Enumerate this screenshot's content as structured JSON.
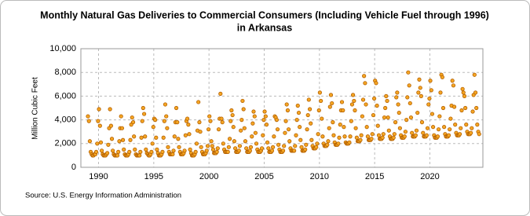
{
  "chart_data": {
    "type": "scatter",
    "title": [
      "Monthly Natural Gas Deliveries to Commercial Consumers (Including Vehicle Fuel through 1996)",
      "in Arkansas"
    ],
    "ylabel": "Million Cubic Feet",
    "source": "Source: U.S. Energy Information Administration",
    "xlim": [
      1988.4,
      2024.8
    ],
    "xticks": [
      1990,
      1995,
      2000,
      2005,
      2010,
      2015,
      2020
    ],
    "ylim": [
      0,
      10000
    ],
    "yticks": [
      0,
      {
        "value": 2000,
        "label": "2,000"
      },
      {
        "value": 4000,
        "label": "4,000"
      },
      {
        "value": 6000,
        "label": "6,000"
      },
      {
        "value": 8000,
        "label": "8,000"
      },
      {
        "value": 10000,
        "label": "10,000"
      }
    ],
    "grid": true,
    "x": [
      1989.04,
      1989.13,
      1989.21,
      1989.29,
      1989.38,
      1989.46,
      1989.54,
      1989.63,
      1989.71,
      1989.79,
      1989.88,
      1989.96,
      1990.04,
      1990.13,
      1990.21,
      1990.29,
      1990.38,
      1990.46,
      1990.54,
      1990.63,
      1990.71,
      1990.79,
      1990.88,
      1990.96,
      1991.04,
      1991.13,
      1991.21,
      1991.29,
      1991.38,
      1991.46,
      1991.54,
      1991.63,
      1991.71,
      1991.79,
      1991.88,
      1991.96,
      1992.04,
      1992.13,
      1992.21,
      1992.29,
      1992.38,
      1992.46,
      1992.54,
      1992.63,
      1992.71,
      1992.79,
      1992.88,
      1992.96,
      1993.04,
      1993.13,
      1993.21,
      1993.29,
      1993.38,
      1993.46,
      1993.54,
      1993.63,
      1993.71,
      1993.79,
      1993.88,
      1993.96,
      1994.04,
      1994.13,
      1994.21,
      1994.29,
      1994.38,
      1994.46,
      1994.54,
      1994.63,
      1994.71,
      1994.79,
      1994.88,
      1994.96,
      1995.04,
      1995.13,
      1995.21,
      1995.29,
      1995.38,
      1995.46,
      1995.54,
      1995.63,
      1995.71,
      1995.79,
      1995.88,
      1995.96,
      1996.04,
      1996.13,
      1996.21,
      1996.29,
      1996.38,
      1996.46,
      1996.54,
      1996.63,
      1996.71,
      1996.79,
      1996.88,
      1996.96,
      1997.04,
      1997.13,
      1997.21,
      1997.29,
      1997.38,
      1997.46,
      1997.54,
      1997.63,
      1997.71,
      1997.79,
      1997.88,
      1997.96,
      1998.04,
      1998.13,
      1998.21,
      1998.29,
      1998.38,
      1998.46,
      1998.54,
      1998.63,
      1998.71,
      1998.79,
      1998.88,
      1998.96,
      1999.04,
      1999.13,
      1999.21,
      1999.29,
      1999.38,
      1999.46,
      1999.54,
      1999.63,
      1999.71,
      1999.79,
      1999.88,
      1999.96,
      2000.04,
      2000.13,
      2000.21,
      2000.29,
      2000.38,
      2000.46,
      2000.54,
      2000.63,
      2000.71,
      2000.79,
      2000.88,
      2000.96,
      2001.04,
      2001.13,
      2001.21,
      2001.29,
      2001.38,
      2001.46,
      2001.54,
      2001.63,
      2001.71,
      2001.79,
      2001.88,
      2001.96,
      2002.04,
      2002.13,
      2002.21,
      2002.29,
      2002.38,
      2002.46,
      2002.54,
      2002.63,
      2002.71,
      2002.79,
      2002.88,
      2002.96,
      2003.04,
      2003.13,
      2003.21,
      2003.29,
      2003.38,
      2003.46,
      2003.54,
      2003.63,
      2003.71,
      2003.79,
      2003.88,
      2003.96,
      2004.04,
      2004.13,
      2004.21,
      2004.29,
      2004.38,
      2004.46,
      2004.54,
      2004.63,
      2004.71,
      2004.79,
      2004.88,
      2004.96,
      2005.04,
      2005.13,
      2005.21,
      2005.29,
      2005.38,
      2005.46,
      2005.54,
      2005.63,
      2005.71,
      2005.79,
      2005.88,
      2005.96,
      2006.04,
      2006.13,
      2006.21,
      2006.29,
      2006.38,
      2006.46,
      2006.54,
      2006.63,
      2006.71,
      2006.79,
      2006.88,
      2006.96,
      2007.04,
      2007.13,
      2007.21,
      2007.29,
      2007.38,
      2007.46,
      2007.54,
      2007.63,
      2007.71,
      2007.79,
      2007.88,
      2007.96,
      2008.04,
      2008.13,
      2008.21,
      2008.29,
      2008.38,
      2008.46,
      2008.54,
      2008.63,
      2008.71,
      2008.79,
      2008.88,
      2008.96,
      2009.04,
      2009.13,
      2009.21,
      2009.29,
      2009.38,
      2009.46,
      2009.54,
      2009.63,
      2009.71,
      2009.79,
      2009.88,
      2009.96,
      2010.04,
      2010.13,
      2010.21,
      2010.29,
      2010.38,
      2010.46,
      2010.54,
      2010.63,
      2010.71,
      2010.79,
      2010.88,
      2010.96,
      2011.04,
      2011.13,
      2011.21,
      2011.29,
      2011.38,
      2011.46,
      2011.54,
      2011.63,
      2011.71,
      2011.79,
      2011.88,
      2011.96,
      2012.04,
      2012.13,
      2012.21,
      2012.29,
      2012.38,
      2012.46,
      2012.54,
      2012.63,
      2012.71,
      2012.79,
      2012.88,
      2012.96,
      2013.04,
      2013.13,
      2013.21,
      2013.29,
      2013.38,
      2013.46,
      2013.54,
      2013.63,
      2013.71,
      2013.79,
      2013.88,
      2013.96,
      2014.04,
      2014.13,
      2014.21,
      2014.29,
      2014.38,
      2014.46,
      2014.54,
      2014.63,
      2014.71,
      2014.79,
      2014.88,
      2014.96,
      2015.04,
      2015.13,
      2015.21,
      2015.29,
      2015.38,
      2015.46,
      2015.54,
      2015.63,
      2015.71,
      2015.79,
      2015.88,
      2015.96,
      2016.04,
      2016.13,
      2016.21,
      2016.29,
      2016.38,
      2016.46,
      2016.54,
      2016.63,
      2016.71,
      2016.79,
      2016.88,
      2016.96,
      2017.04,
      2017.13,
      2017.21,
      2017.29,
      2017.38,
      2017.46,
      2017.54,
      2017.63,
      2017.71,
      2017.79,
      2017.88,
      2017.96,
      2018.04,
      2018.13,
      2018.21,
      2018.29,
      2018.38,
      2018.46,
      2018.54,
      2018.63,
      2018.71,
      2018.79,
      2018.88,
      2018.96,
      2019.04,
      2019.13,
      2019.21,
      2019.29,
      2019.38,
      2019.46,
      2019.54,
      2019.63,
      2019.71,
      2019.79,
      2019.88,
      2019.96,
      2020.04,
      2020.13,
      2020.21,
      2020.29,
      2020.38,
      2020.46,
      2020.54,
      2020.63,
      2020.71,
      2020.79,
      2020.88,
      2020.96,
      2021.04,
      2021.13,
      2021.21,
      2021.29,
      2021.38,
      2021.46,
      2021.54,
      2021.63,
      2021.71,
      2021.79,
      2021.88,
      2021.96,
      2022.04,
      2022.13,
      2022.21,
      2022.29,
      2022.38,
      2022.46,
      2022.54,
      2022.63,
      2022.71,
      2022.79,
      2022.88,
      2022.96,
      2023.04,
      2023.13,
      2023.21,
      2023.29,
      2023.38,
      2023.46,
      2023.54,
      2023.63,
      2023.71,
      2023.79,
      2023.88,
      2023.96,
      2024.04,
      2024.13,
      2024.21,
      2024.29,
      2024.38,
      2024.46
    ],
    "series": [
      {
        "color": "#f5a623",
        "values": [
          4300,
          3900,
          2200,
          1300,
          1100,
          1000,
          1000,
          1100,
          1100,
          1300,
          2000,
          3900,
          4900,
          3500,
          2100,
          1400,
          1100,
          1000,
          1000,
          1000,
          1100,
          1200,
          1900,
          3300,
          4900,
          3500,
          2400,
          1400,
          1100,
          1000,
          1000,
          1000,
          1000,
          1300,
          2200,
          3300,
          4300,
          3300,
          2300,
          1500,
          1100,
          1000,
          1000,
          1000,
          1100,
          1300,
          2300,
          3600,
          4200,
          3800,
          2600,
          1500,
          1100,
          1000,
          1000,
          1000,
          1000,
          1300,
          2500,
          3900,
          5000,
          4500,
          2600,
          1500,
          1200,
          1100,
          1000,
          1000,
          1100,
          1300,
          2000,
          3400,
          4100,
          4000,
          2500,
          1500,
          1200,
          1000,
          1000,
          1000,
          1100,
          1300,
          2500,
          3900,
          5300,
          4300,
          3300,
          1700,
          1300,
          1100,
          1100,
          1100,
          1100,
          1400,
          2600,
          3800,
          5000,
          3800,
          2400,
          1700,
          1300,
          1100,
          1100,
          1100,
          1200,
          1400,
          2700,
          3900,
          4100,
          3600,
          2800,
          1500,
          1200,
          1000,
          1000,
          1000,
          1100,
          1300,
          2000,
          3100,
          5500,
          3800,
          3000,
          1700,
          1300,
          1100,
          1100,
          1100,
          1200,
          1400,
          1800,
          3200,
          4300,
          3900,
          2200,
          1800,
          1500,
          1200,
          1200,
          1200,
          1300,
          1600,
          3200,
          4100,
          6200,
          4100,
          3800,
          2000,
          1500,
          1300,
          1300,
          1300,
          1300,
          1700,
          2400,
          3900,
          4800,
          4400,
          3400,
          2200,
          1600,
          1300,
          1300,
          1300,
          1400,
          1800,
          3100,
          4000,
          5600,
          4900,
          3300,
          2200,
          1600,
          1300,
          1300,
          1300,
          1400,
          1700,
          2600,
          3700,
          4700,
          4300,
          2900,
          2000,
          1500,
          1300,
          1300,
          1300,
          1400,
          1600,
          2700,
          4000,
          4700,
          4300,
          3600,
          2100,
          1600,
          1300,
          1300,
          1300,
          1400,
          1700,
          2600,
          4300,
          4200,
          4000,
          3200,
          1900,
          1500,
          1300,
          1300,
          1300,
          1400,
          1800,
          2900,
          3900,
          5300,
          4800,
          3200,
          2200,
          1600,
          1400,
          1400,
          1400,
          1400,
          1800,
          2700,
          4000,
          5200,
          4600,
          3400,
          2300,
          1700,
          1400,
          1400,
          1400,
          1500,
          1900,
          3200,
          4400,
          5700,
          4900,
          3700,
          2300,
          1800,
          1600,
          1600,
          1600,
          1700,
          2000,
          2800,
          4800,
          6300,
          5600,
          4100,
          2600,
          2000,
          1800,
          1800,
          1800,
          1900,
          2200,
          3300,
          5100,
          6100,
          5400,
          3800,
          2700,
          2100,
          1900,
          1900,
          1900,
          2000,
          2500,
          3600,
          4800,
          5500,
          4800,
          3400,
          2600,
          2100,
          2000,
          2000,
          2000,
          2100,
          2600,
          3900,
          5300,
          6100,
          5600,
          4800,
          3300,
          2500,
          2200,
          2200,
          2200,
          2300,
          2700,
          4300,
          5700,
          7700,
          7100,
          5300,
          3400,
          2600,
          2300,
          2300,
          2300,
          2400,
          2800,
          4400,
          5800,
          7300,
          7100,
          5200,
          3500,
          2700,
          2400,
          2400,
          2400,
          2500,
          2800,
          4200,
          5000,
          6000,
          5600,
          4200,
          3100,
          2600,
          2400,
          2400,
          2400,
          2500,
          2800,
          3800,
          5900,
          6300,
          5300,
          4600,
          3300,
          2700,
          2500,
          2500,
          2500,
          2600,
          3000,
          4000,
          5900,
          8000,
          6900,
          5400,
          4200,
          2900,
          2600,
          2600,
          2600,
          2700,
          3100,
          4600,
          6300,
          7400,
          6700,
          6000,
          3800,
          2900,
          2600,
          2600,
          2600,
          2700,
          3300,
          5300,
          5800,
          7300,
          6500,
          4500,
          3400,
          2700,
          2500,
          2500,
          2500,
          2600,
          3200,
          4300,
          6300,
          7800,
          7600,
          5000,
          3400,
          2800,
          2600,
          2600,
          2600,
          2700,
          3200,
          4100,
          5200,
          7300,
          6900,
          5100,
          3600,
          2900,
          2700,
          2700,
          2700,
          2800,
          3300,
          4800,
          6600,
          6300,
          6000,
          5000,
          3600,
          3000,
          2800,
          2800,
          2800,
          2900,
          3300,
          4700,
          6100,
          7800,
          6300,
          5000,
          3600,
          3000,
          2800
        ]
      }
    ]
  }
}
